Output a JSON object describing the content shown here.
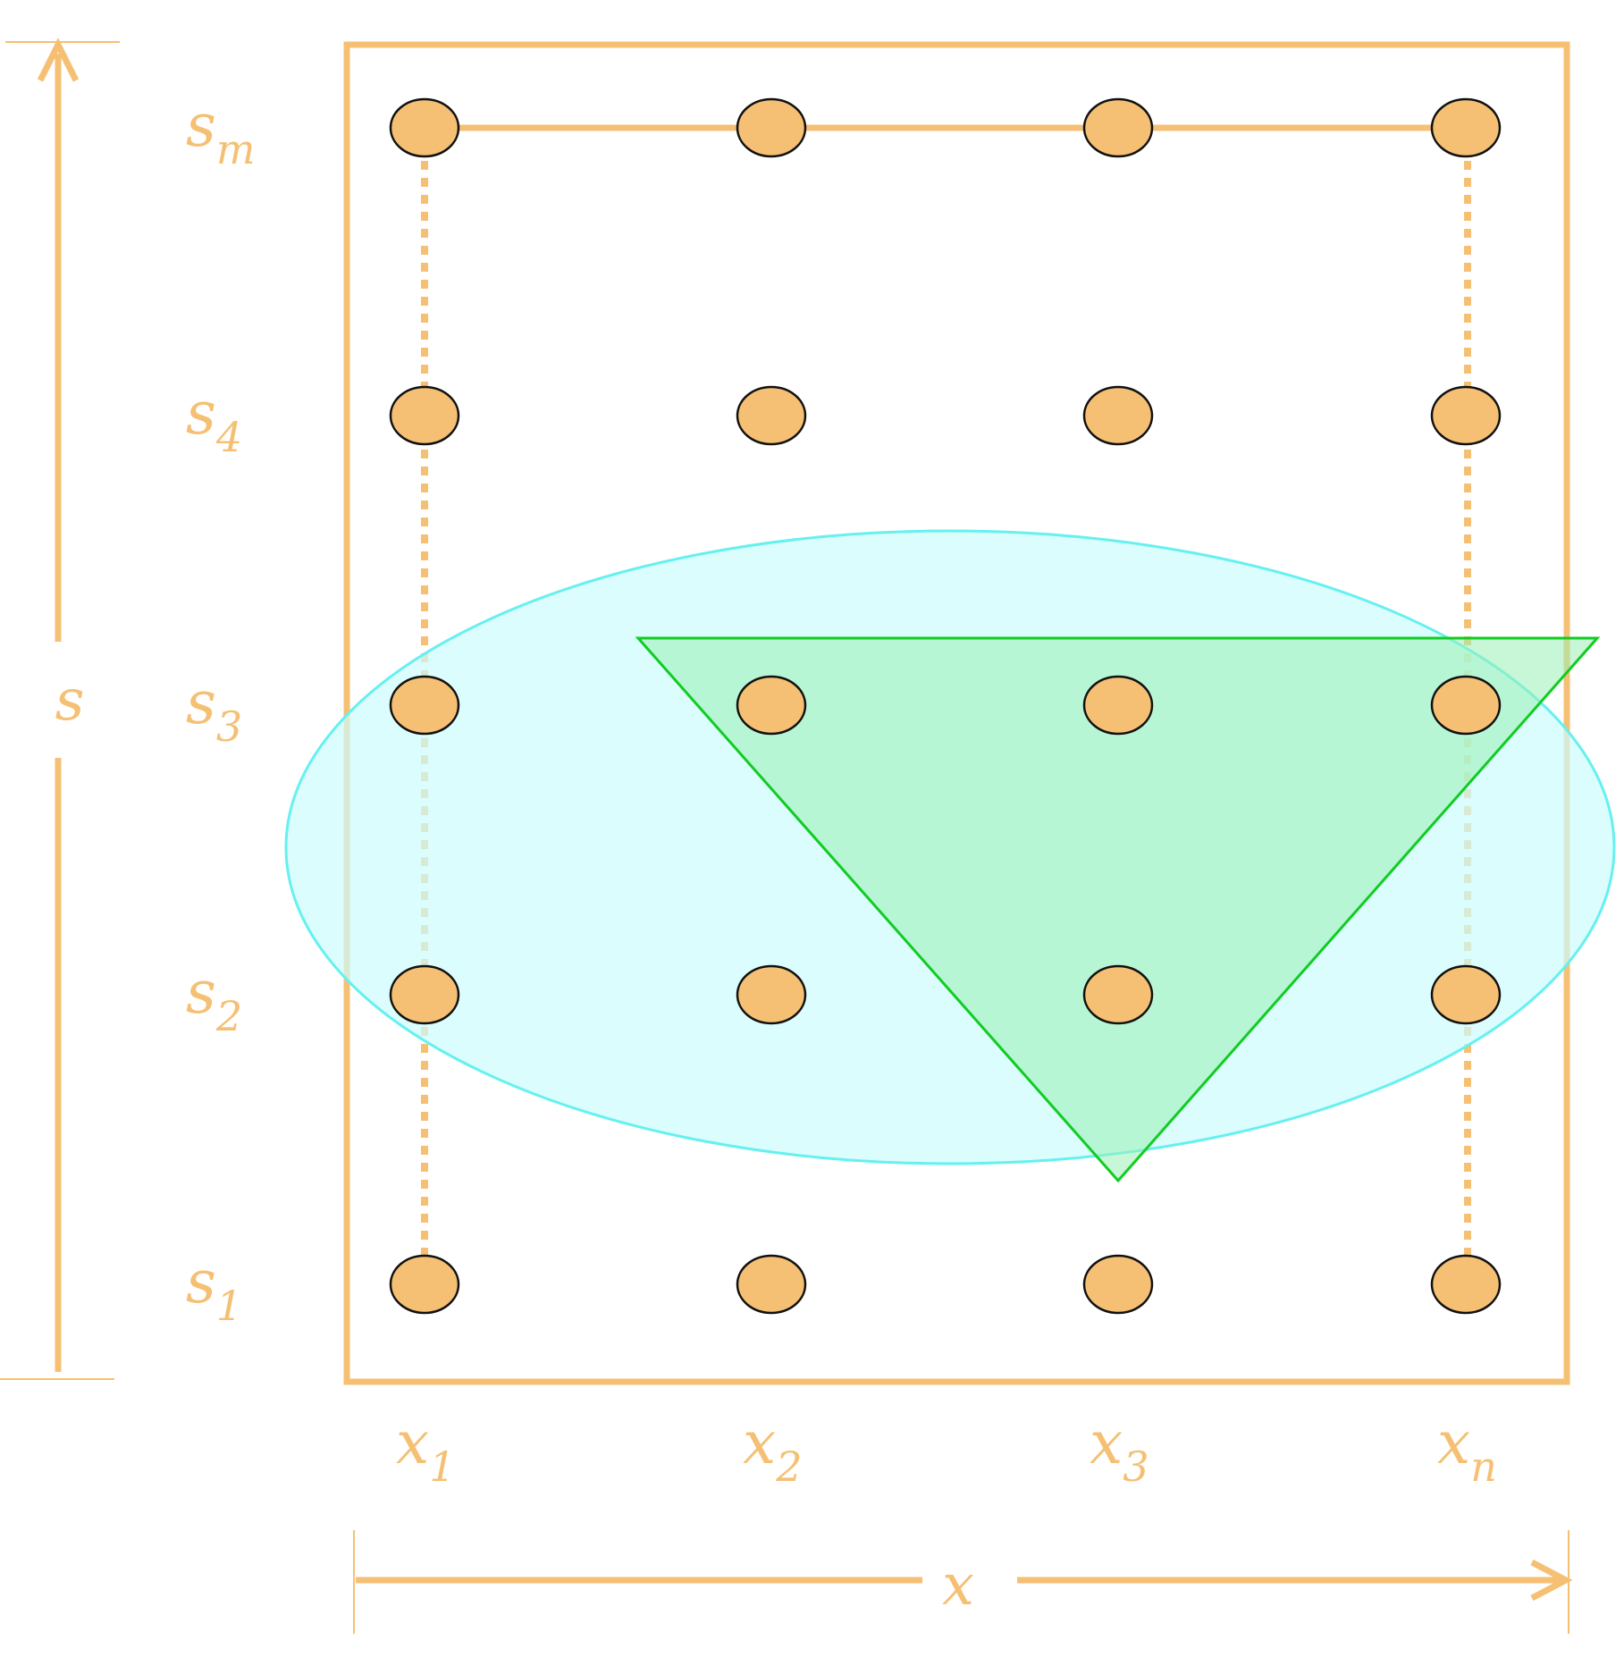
{
  "colors": {
    "accent": "#f5c074",
    "node_fill": "#f5c074",
    "node_stroke": "#111111",
    "ellipse_fill": "#dcfdfd",
    "ellipse_stroke": "#66f0f0",
    "triangle_fill": "#a6f0c6",
    "triangle_stroke": "#11cc22"
  },
  "axes": {
    "vertical_label": "s",
    "horizontal_label": "x"
  },
  "rows": [
    {
      "base": "s",
      "sub": "m"
    },
    {
      "base": "s",
      "sub": "4"
    },
    {
      "base": "s",
      "sub": "3"
    },
    {
      "base": "s",
      "sub": "2"
    },
    {
      "base": "s",
      "sub": "1"
    }
  ],
  "columns": [
    {
      "base": "x",
      "sub": "1"
    },
    {
      "base": "x",
      "sub": "2"
    },
    {
      "base": "x",
      "sub": "3"
    },
    {
      "base": "x",
      "sub": "n"
    }
  ]
}
